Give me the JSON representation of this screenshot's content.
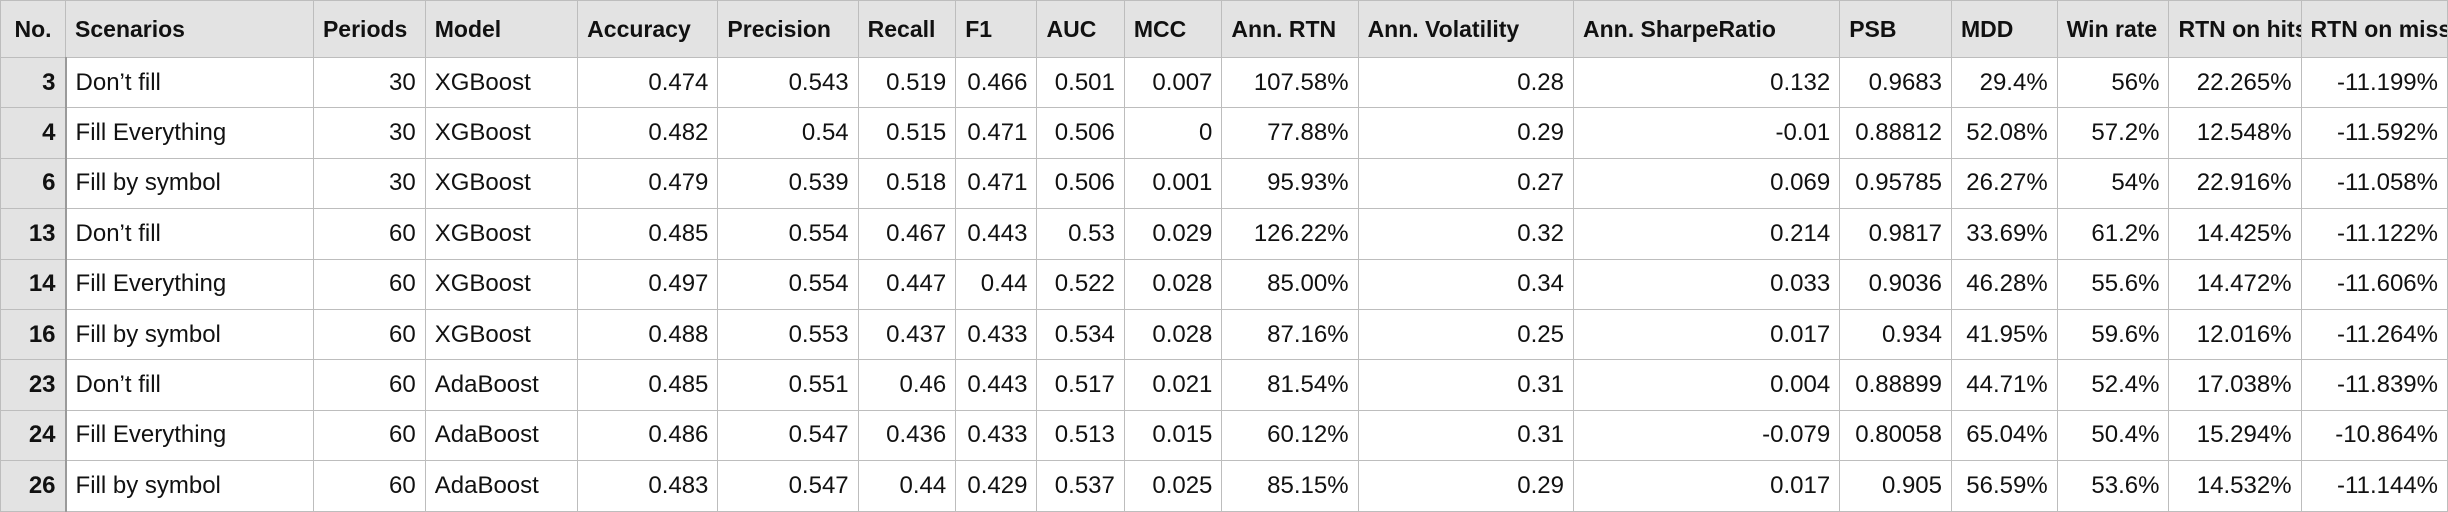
{
  "table": {
    "columns": [
      "No.",
      "Scenarios",
      "Periods",
      "Model",
      "Accuracy",
      "Precision",
      "Recall",
      "F1",
      "AUC",
      "MCC",
      "Ann. RTN",
      "Ann. Volatility",
      "Ann. SharpeRatio",
      "PSB",
      "MDD",
      "Win rate",
      "RTN on hits",
      "RTN on misses"
    ],
    "rows": [
      [
        "3",
        "Don’t fill",
        "30",
        "XGBoost",
        "0.474",
        "0.543",
        "0.519",
        "0.466",
        "0.501",
        "0.007",
        "107.58%",
        "0.28",
        "0.132",
        "0.9683",
        "29.4%",
        "56%",
        "22.265%",
        "-11.199%"
      ],
      [
        "4",
        "Fill Everything",
        "30",
        "XGBoost",
        "0.482",
        "0.54",
        "0.515",
        "0.471",
        "0.506",
        "0",
        "77.88%",
        "0.29",
        "-0.01",
        "0.88812",
        "52.08%",
        "57.2%",
        "12.548%",
        "-11.592%"
      ],
      [
        "6",
        "Fill by symbol",
        "30",
        "XGBoost",
        "0.479",
        "0.539",
        "0.518",
        "0.471",
        "0.506",
        "0.001",
        "95.93%",
        "0.27",
        "0.069",
        "0.95785",
        "26.27%",
        "54%",
        "22.916%",
        "-11.058%"
      ],
      [
        "13",
        "Don’t fill",
        "60",
        "XGBoost",
        "0.485",
        "0.554",
        "0.467",
        "0.443",
        "0.53",
        "0.029",
        "126.22%",
        "0.32",
        "0.214",
        "0.9817",
        "33.69%",
        "61.2%",
        "14.425%",
        "-11.122%"
      ],
      [
        "14",
        "Fill Everything",
        "60",
        "XGBoost",
        "0.497",
        "0.554",
        "0.447",
        "0.44",
        "0.522",
        "0.028",
        "85.00%",
        "0.34",
        "0.033",
        "0.9036",
        "46.28%",
        "55.6%",
        "14.472%",
        "-11.606%"
      ],
      [
        "16",
        "Fill by symbol",
        "60",
        "XGBoost",
        "0.488",
        "0.553",
        "0.437",
        "0.433",
        "0.534",
        "0.028",
        "87.16%",
        "0.25",
        "0.017",
        "0.934",
        "41.95%",
        "59.6%",
        "12.016%",
        "-11.264%"
      ],
      [
        "23",
        "Don’t fill",
        "60",
        "AdaBoost",
        "0.485",
        "0.551",
        "0.46",
        "0.443",
        "0.517",
        "0.021",
        "81.54%",
        "0.31",
        "0.004",
        "0.88899",
        "44.71%",
        "52.4%",
        "17.038%",
        "-11.839%"
      ],
      [
        "24",
        "Fill Everything",
        "60",
        "AdaBoost",
        "0.486",
        "0.547",
        "0.436",
        "0.433",
        "0.513",
        "0.015",
        "60.12%",
        "0.31",
        "-0.079",
        "0.80058",
        "65.04%",
        "50.4%",
        "15.294%",
        "-10.864%"
      ],
      [
        "26",
        "Fill by symbol",
        "60",
        "AdaBoost",
        "0.483",
        "0.547",
        "0.44",
        "0.429",
        "0.537",
        "0.025",
        "85.15%",
        "0.29",
        "0.017",
        "0.905",
        "56.59%",
        "53.6%",
        "14.532%",
        "-11.144%"
      ]
    ]
  }
}
